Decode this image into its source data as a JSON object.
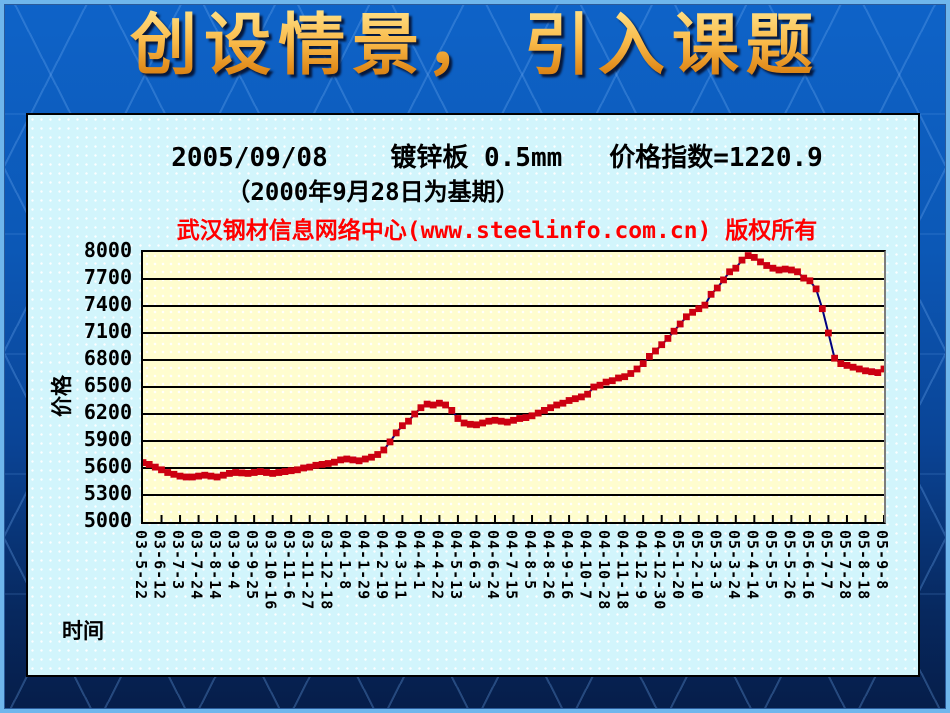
{
  "slide": {
    "title": "创设情景， 引入课题"
  },
  "chart": {
    "title_line1": "2005/09/08    镀锌板 0.5mm   价格指数=1220.9",
    "title_line2": "（2000年9月28日为基期）",
    "copyright": "武汉钢材信息网络中心(www.steelinfo.com.cn) 版权所有",
    "y_axis_title": "价格",
    "x_axis_title": "时间"
  },
  "chart_data": {
    "type": "line",
    "title": "2005/09/08 镀锌板 0.5mm 价格指数=1220.9",
    "subtitle": "（2000年9月28日为基期）",
    "xlabel": "时间",
    "ylabel": "价格",
    "ylim": [
      5000,
      8000
    ],
    "y_ticks": [
      8000,
      7700,
      7400,
      7100,
      6800,
      6500,
      6200,
      5900,
      5600,
      5300,
      5000
    ],
    "grid": "horizontal",
    "legend": "none",
    "label_every_n_points": 3,
    "x_labels": [
      "03-5-22",
      "03-6-12",
      "03-7-3",
      "03-7-24",
      "03-8-14",
      "03-9-4",
      "03-9-25",
      "03-10-16",
      "03-11-6",
      "03-11-27",
      "03-12-18",
      "04-1-8",
      "04-1-29",
      "04-2-19",
      "04-3-11",
      "04-4-1",
      "04-4-22",
      "04-5-13",
      "04-6-3",
      "04-6-24",
      "04-7-15",
      "04-8-5",
      "04-8-26",
      "04-9-16",
      "04-10-7",
      "04-10-28",
      "04-11-18",
      "04-12-9",
      "04-12-30",
      "05-1-20",
      "05-2-10",
      "05-3-3",
      "05-3-24",
      "05-4-14",
      "05-5-5",
      "05-5-26",
      "05-6-16",
      "05-7-7",
      "05-7-28",
      "05-8-18",
      "05-9-8"
    ],
    "values": [
      5660,
      5640,
      5610,
      5580,
      5550,
      5530,
      5510,
      5500,
      5500,
      5510,
      5520,
      5510,
      5500,
      5520,
      5540,
      5550,
      5545,
      5540,
      5550,
      5560,
      5550,
      5540,
      5550,
      5560,
      5570,
      5580,
      5600,
      5610,
      5630,
      5640,
      5650,
      5665,
      5690,
      5700,
      5690,
      5680,
      5700,
      5720,
      5750,
      5800,
      5890,
      5990,
      6070,
      6120,
      6200,
      6270,
      6310,
      6300,
      6320,
      6300,
      6240,
      6150,
      6100,
      6085,
      6080,
      6100,
      6120,
      6130,
      6120,
      6110,
      6130,
      6150,
      6160,
      6180,
      6210,
      6240,
      6270,
      6300,
      6320,
      6350,
      6370,
      6390,
      6420,
      6500,
      6520,
      6555,
      6570,
      6600,
      6615,
      6650,
      6700,
      6760,
      6840,
      6900,
      6970,
      7040,
      7120,
      7200,
      7280,
      7330,
      7370,
      7410,
      7530,
      7600,
      7690,
      7780,
      7820,
      7910,
      7960,
      7940,
      7890,
      7850,
      7820,
      7800,
      7810,
      7800,
      7780,
      7710,
      7680,
      7590,
      7370,
      7100,
      6820,
      6760,
      6740,
      6720,
      6700,
      6680,
      6670,
      6660,
      6700
    ],
    "colors": {
      "line": "#000080",
      "marker": "#cc0011",
      "gridline": "#000000",
      "plot_background": "#fffdcf",
      "panel_background": "#d2f5fc"
    }
  }
}
